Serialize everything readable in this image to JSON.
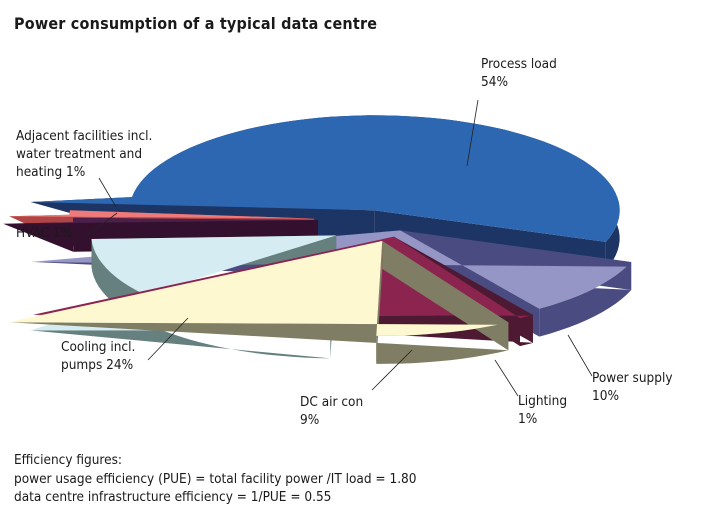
{
  "chart_data": {
    "type": "pie",
    "style": "3d-exploded",
    "title": "Power consumption of a typical data centre",
    "slices": [
      {
        "name": "Process load",
        "value": 54,
        "label": "54%",
        "top": "#2e67b1",
        "side": "#1c3564"
      },
      {
        "name": "Power supply",
        "value": 10,
        "label": "10%",
        "top": "#9595c6",
        "side": "#4a4b80"
      },
      {
        "name": "Lighting",
        "value": 1,
        "label": "1%",
        "top": "#8b2550",
        "side": "#4e1a33"
      },
      {
        "name": "DC air con",
        "value": 9,
        "label": "9%",
        "top": "#fdf8cf",
        "side": "#7f7d63"
      },
      {
        "name": "Cooling incl. pumps",
        "value": 24,
        "label": "24%",
        "top": "#d4ecf2",
        "side": "#65807f"
      },
      {
        "name": "HVAC",
        "value": 1,
        "label": "1%",
        "top": "#4a1f4a",
        "side": "#33102e"
      },
      {
        "name": "Adjacent facilities incl. water treatment and heating",
        "value": 1,
        "label": "1%",
        "top": "#ee7a7a",
        "side": "#b04545"
      }
    ]
  },
  "labels": {
    "process": [
      "Process load",
      "54%"
    ],
    "power": [
      "Power supply",
      "10%"
    ],
    "lighting": [
      "Lighting",
      "1%"
    ],
    "dcair": [
      "DC air con",
      "9%"
    ],
    "cooling": [
      "Cooling incl.",
      "pumps 24%"
    ],
    "hvac": "HVAC 1%",
    "adjacent": [
      "Adjacent facilities incl.",
      "water treatment and",
      "heating 1%"
    ]
  },
  "footer": {
    "heading": "Efficiency figures:",
    "line1": "power usage efficiency (PUE) = total facility power /IT load = 1.80",
    "line2": "data centre infrastructure efficiency = 1/PUE = 0.55"
  }
}
